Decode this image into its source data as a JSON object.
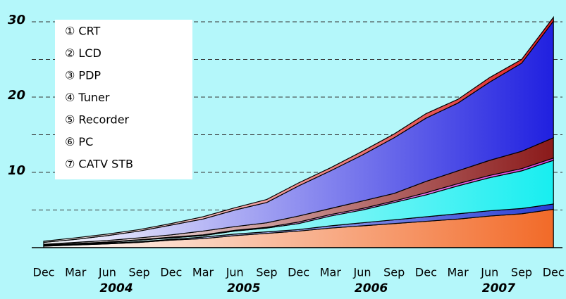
{
  "chart_data": {
    "type": "stacked_area",
    "categories": [
      "Dec",
      "Mar",
      "Jun",
      "Sep",
      "Dec",
      "Mar",
      "Jun",
      "Sep",
      "Dec",
      "Mar",
      "Jun",
      "Sep",
      "Dec",
      "Mar",
      "Jun",
      "Sep",
      "Dec"
    ],
    "x_groups": [
      "2004",
      "2005",
      "2006",
      "2007"
    ],
    "series": [
      {
        "name": "① CRT",
        "color": "#f26a28",
        "values": [
          0.2,
          0.35,
          0.5,
          0.7,
          1.0,
          1.2,
          1.6,
          1.9,
          2.2,
          2.6,
          2.9,
          3.2,
          3.5,
          3.8,
          4.2,
          4.5,
          5.1
        ]
      },
      {
        "name": "② LCD",
        "color": "#2a3fd6",
        "values": [
          0.05,
          0.05,
          0.1,
          0.1,
          0.1,
          0.2,
          0.2,
          0.2,
          0.2,
          0.3,
          0.4,
          0.5,
          0.6,
          0.7,
          0.7,
          0.7,
          0.7
        ]
      },
      {
        "name": "③ PDP",
        "color": "#18eef0",
        "values": [
          0.05,
          0.1,
          0.1,
          0.2,
          0.2,
          0.2,
          0.4,
          0.5,
          0.8,
          1.3,
          1.7,
          2.3,
          2.9,
          3.7,
          4.4,
          5.0,
          5.8
        ]
      },
      {
        "name": "④ Tuner",
        "color": "#e040e0",
        "values": [
          0.05,
          0.05,
          0.05,
          0.05,
          0.1,
          0.1,
          0.1,
          0.1,
          0.2,
          0.2,
          0.2,
          0.2,
          0.3,
          0.3,
          0.3,
          0.3,
          0.3
        ]
      },
      {
        "name": "⑤ Recorder",
        "color": "#8b1a1a",
        "values": [
          0.1,
          0.15,
          0.2,
          0.25,
          0.3,
          0.5,
          0.5,
          0.6,
          0.8,
          0.8,
          1.0,
          1.0,
          1.5,
          1.7,
          2.0,
          2.3,
          2.7
        ]
      },
      {
        "name": "⑥ PC",
        "color": "#2020e0",
        "values": [
          0.25,
          0.4,
          0.65,
          0.9,
          1.3,
          1.6,
          2.2,
          2.7,
          4.0,
          5.0,
          6.1,
          7.4,
          8.4,
          9.0,
          10.4,
          11.7,
          15.5
        ]
      },
      {
        "name": "⑦ CATV STB",
        "color": "#e02020",
        "values": [
          0.15,
          0.2,
          0.2,
          0.2,
          0.2,
          0.3,
          0.3,
          0.4,
          0.4,
          0.4,
          0.5,
          0.5,
          0.6,
          0.5,
          0.6,
          0.5,
          0.5
        ]
      }
    ],
    "ylim": [
      0,
      33
    ],
    "yticks": [
      10,
      20,
      30
    ],
    "minor_yticks": [
      5,
      15,
      25
    ],
    "grid": true
  }
}
